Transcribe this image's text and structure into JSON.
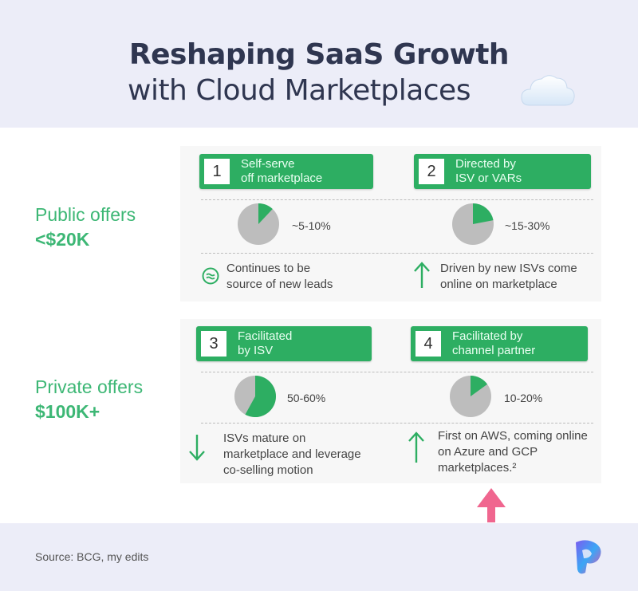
{
  "title": {
    "line1": "Reshaping SaaS Growth",
    "line2": "with Cloud Marketplaces"
  },
  "icons": {
    "title": "cloud-icon",
    "logo": "brand-logo-icon",
    "pointer": "arrow-up-icon"
  },
  "colors": {
    "accent_green": "#2dae62",
    "label_green": "#3db775",
    "pink_arrow": "#f0668f",
    "band": "#ecedf8",
    "pie_gray": "#bdbdbd"
  },
  "rows": [
    {
      "label": "Public offers",
      "amount": "<$20K"
    },
    {
      "label": "Private offers",
      "amount": "$100K+"
    }
  ],
  "cards": [
    {
      "number": "1",
      "title": "Self-serve\noff marketplace",
      "share_label": "~5-10%",
      "pie_fraction": 0.12,
      "trend": "stable",
      "description": "Continues to be\nsource of new leads"
    },
    {
      "number": "2",
      "title": "Directed by\nISV or VARs",
      "share_label": "~15-30%",
      "pie_fraction": 0.22,
      "trend": "up",
      "description": "Driven by new ISVs come\nonline on marketplace"
    },
    {
      "number": "3",
      "title": "Facilitated\nby ISV",
      "share_label": "50-60%",
      "pie_fraction": 0.58,
      "trend": "down",
      "description": "ISVs mature on\nmarketplace and leverage\nco-selling motion"
    },
    {
      "number": "4",
      "title": "Facilitated by\nchannel partner",
      "share_label": "10-20%",
      "pie_fraction": 0.15,
      "trend": "up",
      "description": "First on AWS, coming online\non Azure and GCP\nmarketplaces.²"
    }
  ],
  "source": "Source: BCG, my edits"
}
